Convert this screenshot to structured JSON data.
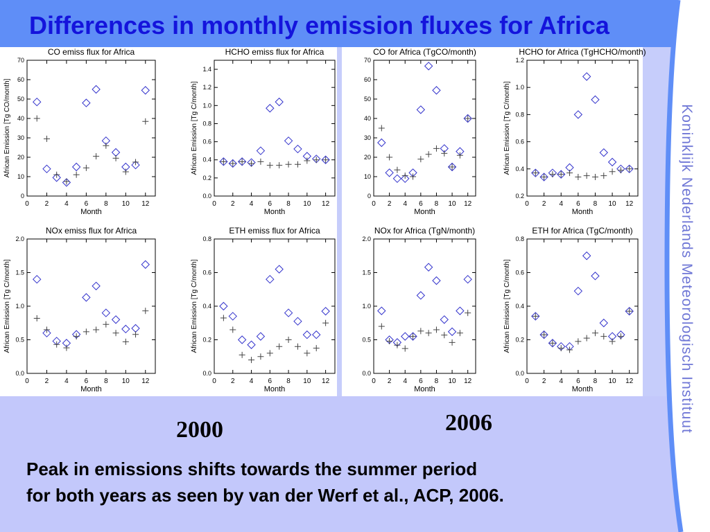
{
  "slide": {
    "title": "Differences in monthly emission fluxes for Africa",
    "vertical_text": "Koninklijk Nederlands Meteorologisch Instituut",
    "year_left": "2000",
    "year_right": "2006",
    "caption_line1": "Peak in emissions shifts towards the summer period",
    "caption_line2": "for both years as seen by van der Werf et al., ACP, 2006."
  },
  "colors": {
    "diamond": "#3333cc",
    "plus": "#444444",
    "title": "#1414dc"
  },
  "chart_data": [
    {
      "type": "scatter",
      "title": "CO emiss flux for Africa",
      "xlabel": "Month",
      "ylabel": "African Emission [Tg CO/month]",
      "xlim": [
        0,
        13
      ],
      "ylim": [
        0,
        70
      ],
      "xticks": [
        0,
        2,
        4,
        6,
        8,
        10,
        12
      ],
      "yticks": [
        0,
        10,
        20,
        30,
        40,
        50,
        60,
        70
      ],
      "series": [
        {
          "marker": "diamond",
          "values": [
            48.5,
            14,
            9.5,
            7,
            15,
            48,
            55,
            28.5,
            22.5,
            15,
            16,
            54.5
          ]
        },
        {
          "marker": "plus",
          "values": [
            40,
            29.5,
            11,
            7.5,
            11,
            14.5,
            20.5,
            26,
            19.5,
            12.5,
            17.5,
            38.5
          ]
        }
      ]
    },
    {
      "type": "scatter",
      "title": "HCHO emiss flux for Africa",
      "xlabel": "Month",
      "ylabel": "African Emission [Tg C/month]",
      "xlim": [
        0,
        13
      ],
      "ylim": [
        0,
        1.5
      ],
      "xticks": [
        0,
        2,
        4,
        6,
        8,
        10,
        12
      ],
      "yticks": [
        "0.0",
        "0.2",
        "0.4",
        "0.6",
        "0.8",
        "1.0",
        "1.2",
        "1.4"
      ],
      "series": [
        {
          "marker": "diamond",
          "values": [
            0.38,
            0.36,
            0.38,
            0.37,
            0.5,
            0.97,
            1.04,
            0.61,
            0.52,
            0.44,
            0.41,
            0.4
          ]
        },
        {
          "marker": "plus",
          "values": [
            0.38,
            0.36,
            0.38,
            0.36,
            0.38,
            0.34,
            0.34,
            0.35,
            0.35,
            0.39,
            0.4,
            0.4
          ]
        }
      ]
    },
    {
      "type": "scatter",
      "title": "CO for Africa (TgCO/month)",
      "xlabel": "Month",
      "ylabel": "",
      "xlim": [
        0,
        13
      ],
      "ylim": [
        0,
        70
      ],
      "xticks": [
        0,
        2,
        4,
        6,
        8,
        10,
        12
      ],
      "yticks": [
        0,
        10,
        20,
        30,
        40,
        50,
        60,
        70
      ],
      "series": [
        {
          "marker": "diamond",
          "values": [
            27.5,
            12,
            9,
            9,
            12,
            44.5,
            67,
            54.5,
            24.5,
            15,
            23,
            40
          ]
        },
        {
          "marker": "plus",
          "values": [
            35,
            20,
            13.5,
            10.5,
            10,
            19,
            21.5,
            24.5,
            22,
            15,
            21,
            40
          ]
        }
      ]
    },
    {
      "type": "scatter",
      "title": "HCHO for Africa (TgHCHO/month)",
      "xlabel": "Month",
      "ylabel": "African Emission [Tg C/month]",
      "xlim": [
        0,
        13
      ],
      "ylim": [
        0.2,
        1.2
      ],
      "xticks": [
        0,
        2,
        4,
        6,
        8,
        10,
        12
      ],
      "yticks": [
        "0.2",
        "0.4",
        "0.6",
        "0.8",
        "1.0",
        "1.2"
      ],
      "series": [
        {
          "marker": "diamond",
          "values": [
            0.37,
            0.34,
            0.37,
            0.36,
            0.41,
            0.8,
            1.08,
            0.91,
            0.52,
            0.45,
            0.4,
            0.4
          ]
        },
        {
          "marker": "plus",
          "values": [
            0.37,
            0.34,
            0.36,
            0.36,
            0.37,
            0.34,
            0.35,
            0.34,
            0.35,
            0.38,
            0.39,
            0.4
          ]
        }
      ]
    },
    {
      "type": "scatter",
      "title": "NOx emiss flux for Africa",
      "xlabel": "Month",
      "ylabel": "African Emission [Tg C/month]",
      "xlim": [
        0,
        13
      ],
      "ylim": [
        0,
        2
      ],
      "xticks": [
        0,
        2,
        4,
        6,
        8,
        10,
        12
      ],
      "yticks": [
        "0.0",
        "0.5",
        "1.0",
        "1.5",
        "2.0"
      ],
      "series": [
        {
          "marker": "diamond",
          "values": [
            1.4,
            0.6,
            0.48,
            0.45,
            0.58,
            1.13,
            1.3,
            0.9,
            0.8,
            0.66,
            0.67,
            1.62
          ]
        },
        {
          "marker": "plus",
          "values": [
            0.82,
            0.65,
            0.43,
            0.38,
            0.55,
            0.62,
            0.65,
            0.73,
            0.6,
            0.47,
            0.58,
            0.93
          ]
        }
      ]
    },
    {
      "type": "scatter",
      "title": "ETH emiss flux for Africa",
      "xlabel": "Month",
      "ylabel": "African Emission [Tg C/month]",
      "xlim": [
        0,
        13
      ],
      "ylim": [
        0,
        0.8
      ],
      "xticks": [
        0,
        2,
        4,
        6,
        8,
        10,
        12
      ],
      "yticks": [
        "0.0",
        "0.2",
        "0.4",
        "0.6",
        "0.8"
      ],
      "series": [
        {
          "marker": "diamond",
          "values": [
            0.4,
            0.34,
            0.2,
            0.17,
            0.22,
            0.56,
            0.62,
            0.36,
            0.31,
            0.23,
            0.23,
            0.37
          ]
        },
        {
          "marker": "plus",
          "values": [
            0.33,
            0.26,
            0.11,
            0.08,
            0.1,
            0.12,
            0.16,
            0.2,
            0.16,
            0.12,
            0.15,
            0.3
          ]
        }
      ]
    },
    {
      "type": "scatter",
      "title": "NOx for Africa (TgN/month)",
      "xlabel": "Month",
      "ylabel": "",
      "xlim": [
        0,
        13
      ],
      "ylim": [
        0,
        2
      ],
      "xticks": [
        0,
        2,
        4,
        6,
        8,
        10,
        12
      ],
      "yticks": [
        "0.0",
        "0.5",
        "1.0",
        "1.5",
        "2.0"
      ],
      "series": [
        {
          "marker": "diamond",
          "values": [
            0.93,
            0.5,
            0.46,
            0.55,
            0.55,
            1.16,
            1.58,
            1.38,
            0.8,
            0.62,
            0.93,
            1.4
          ]
        },
        {
          "marker": "plus",
          "values": [
            0.7,
            0.48,
            0.42,
            0.37,
            0.55,
            0.63,
            0.6,
            0.65,
            0.57,
            0.46,
            0.6,
            0.9
          ]
        }
      ]
    },
    {
      "type": "scatter",
      "title": "ETH for Africa (TgC/month)",
      "xlabel": "Month",
      "ylabel": "African Emission [Tg C/month]",
      "xlim": [
        0,
        13
      ],
      "ylim": [
        0,
        0.8
      ],
      "xticks": [
        0,
        2,
        4,
        6,
        8,
        10,
        12
      ],
      "yticks": [
        "0.0",
        "0.2",
        "0.4",
        "0.6",
        "0.8"
      ],
      "series": [
        {
          "marker": "diamond",
          "values": [
            0.34,
            0.23,
            0.18,
            0.16,
            0.16,
            0.49,
            0.7,
            0.58,
            0.3,
            0.22,
            0.23,
            0.37
          ]
        },
        {
          "marker": "plus",
          "values": [
            0.34,
            0.23,
            0.18,
            0.15,
            0.14,
            0.19,
            0.21,
            0.24,
            0.22,
            0.19,
            0.22,
            0.37
          ]
        }
      ]
    }
  ]
}
